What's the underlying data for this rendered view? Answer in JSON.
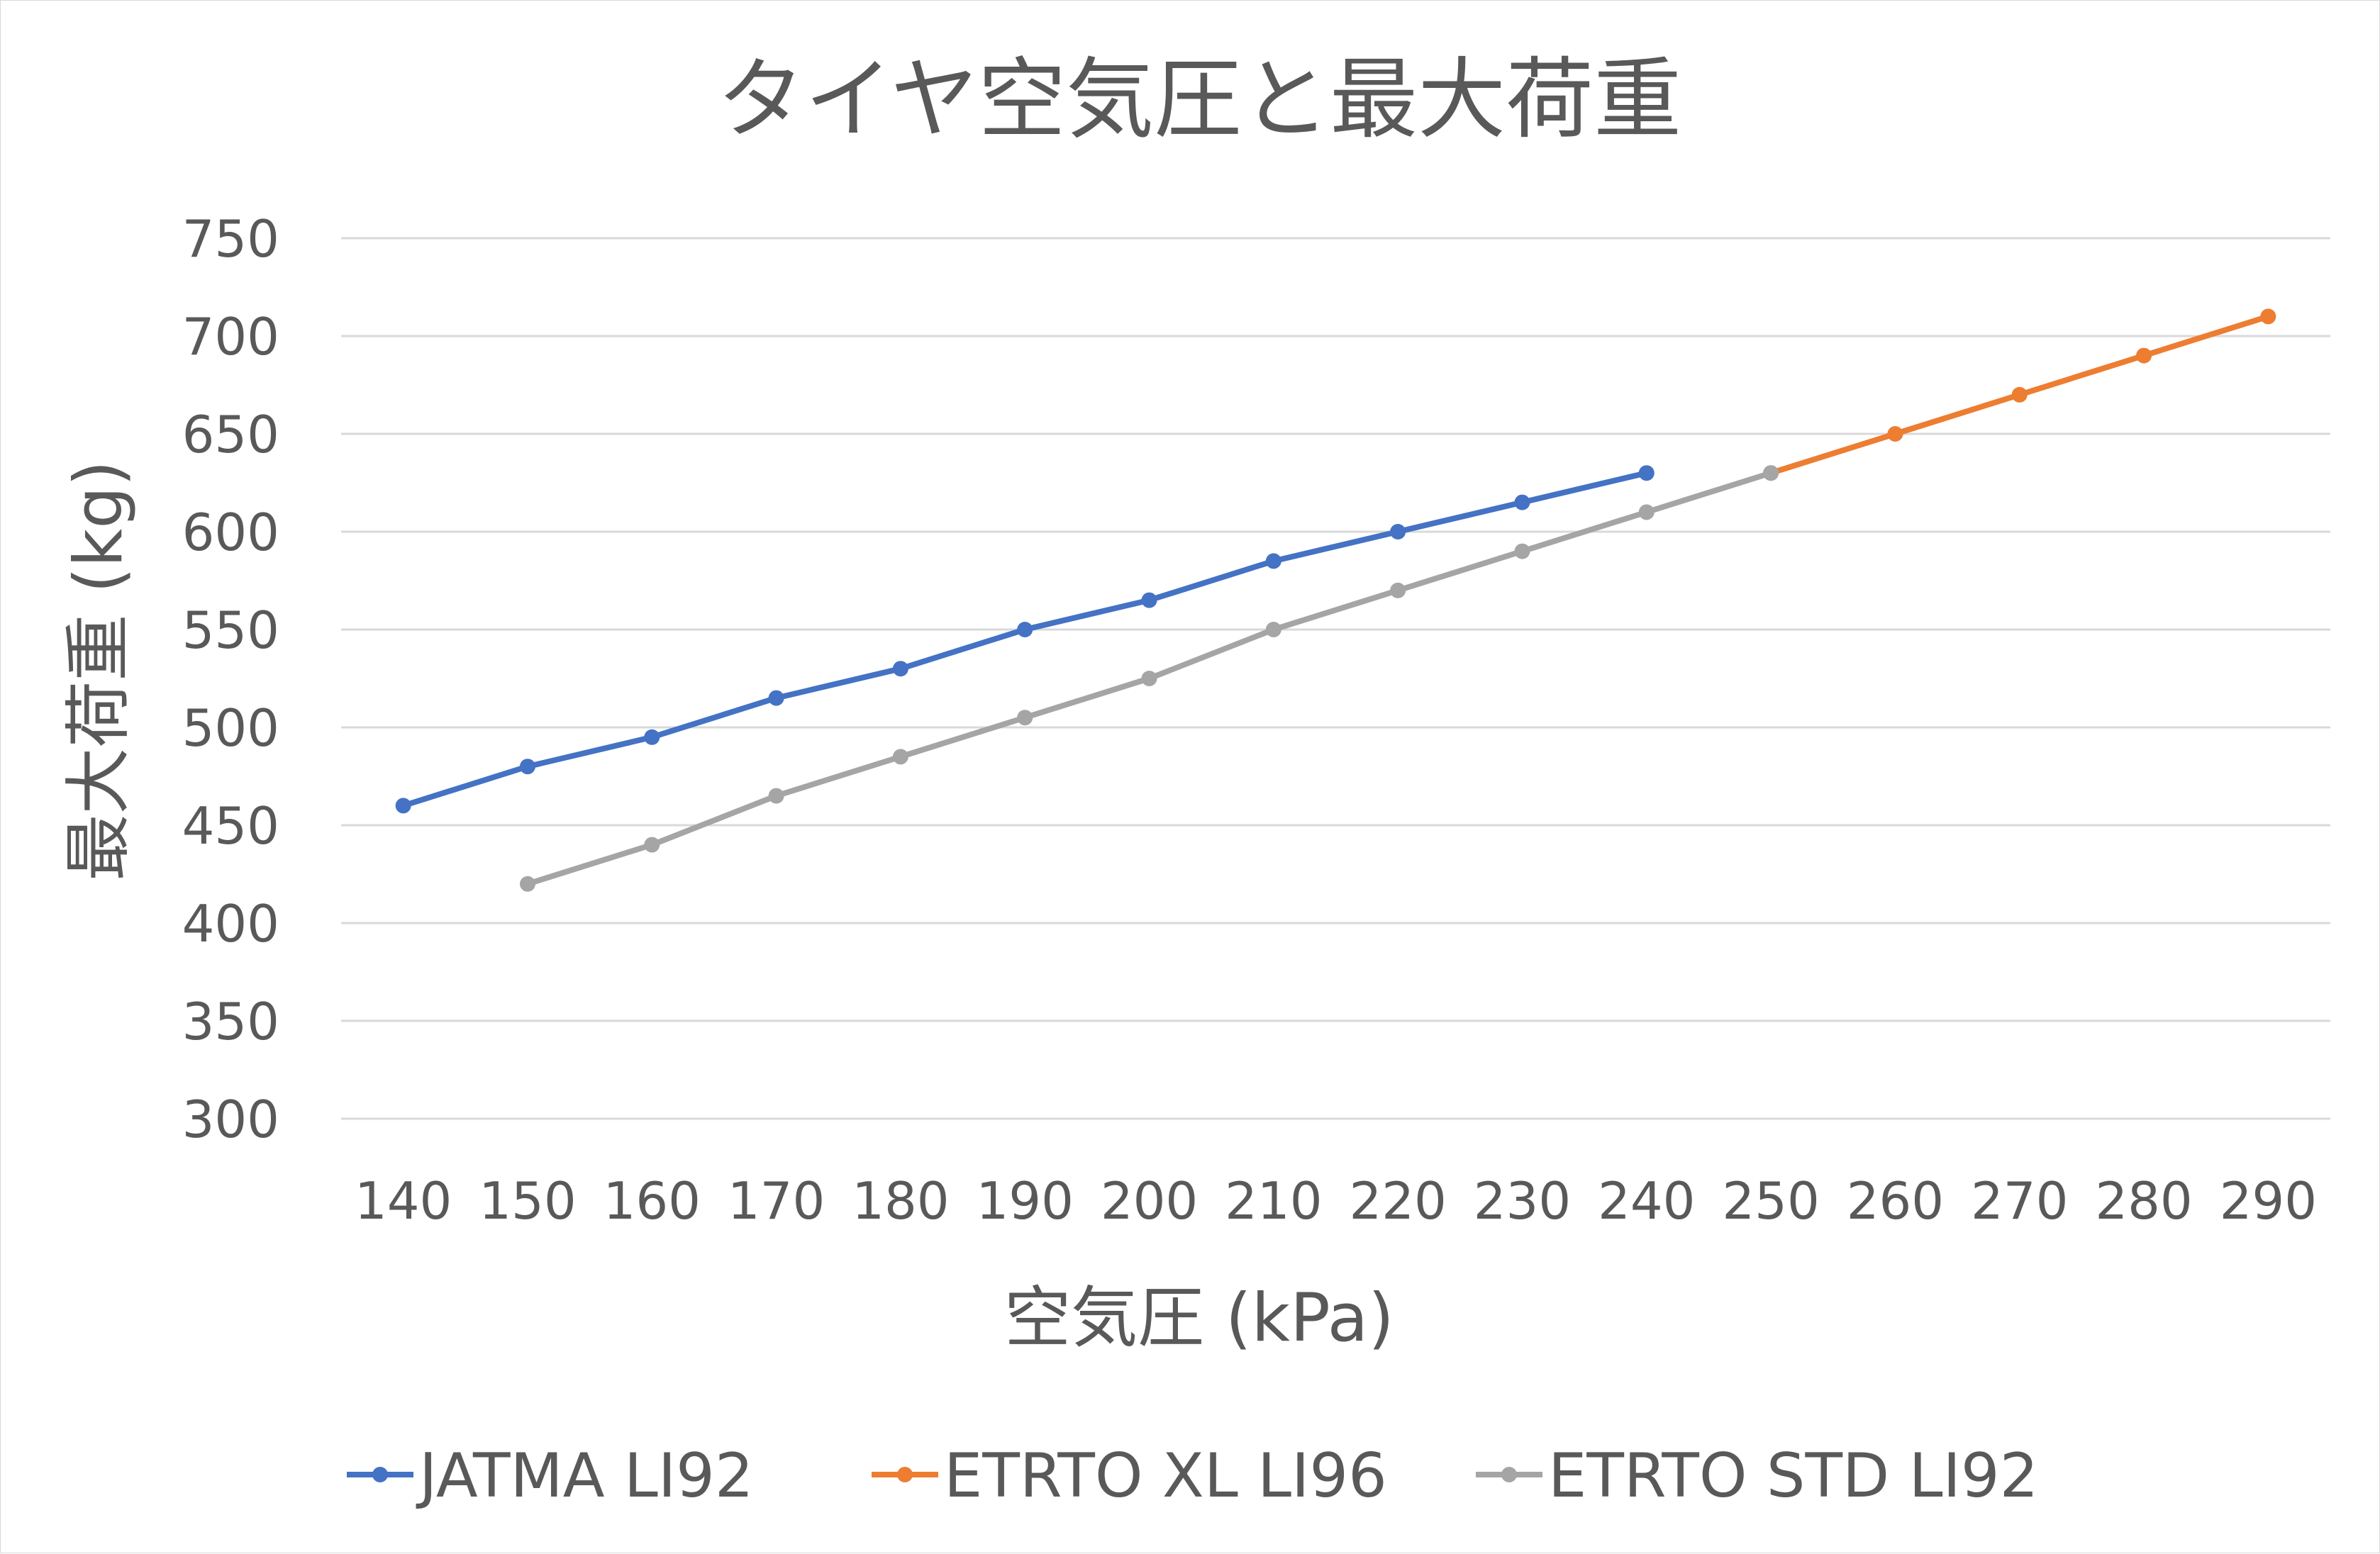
{
  "chart_data": {
    "type": "line",
    "title": "タイヤ空気圧と最大荷重",
    "xlabel": "空気圧 (kPa)",
    "ylabel": "最大荷重 (kg)",
    "categories": [
      140,
      150,
      160,
      170,
      180,
      190,
      200,
      210,
      220,
      230,
      240,
      250,
      260,
      270,
      280,
      290
    ],
    "ylim": [
      300,
      750
    ],
    "yticks": [
      300,
      350,
      400,
      450,
      500,
      550,
      600,
      650,
      700,
      750
    ],
    "grid": true,
    "legend_position": "bottom",
    "series": [
      {
        "name": "JATMA LI92",
        "color": "#4472C4",
        "values": [
          460,
          480,
          495,
          515,
          530,
          550,
          565,
          585,
          600,
          615,
          630,
          null,
          null,
          null,
          null,
          null
        ]
      },
      {
        "name": "ETRTO XL LI96",
        "color": "#ED7D31",
        "values": [
          null,
          null,
          null,
          null,
          null,
          null,
          null,
          null,
          null,
          null,
          null,
          630,
          650,
          670,
          690,
          710
        ]
      },
      {
        "name": "ETRTO STD LI92",
        "color": "#A5A5A5",
        "values": [
          null,
          420,
          440,
          465,
          485,
          505,
          525,
          550,
          570,
          590,
          610,
          630,
          null,
          null,
          null,
          null
        ]
      }
    ]
  }
}
